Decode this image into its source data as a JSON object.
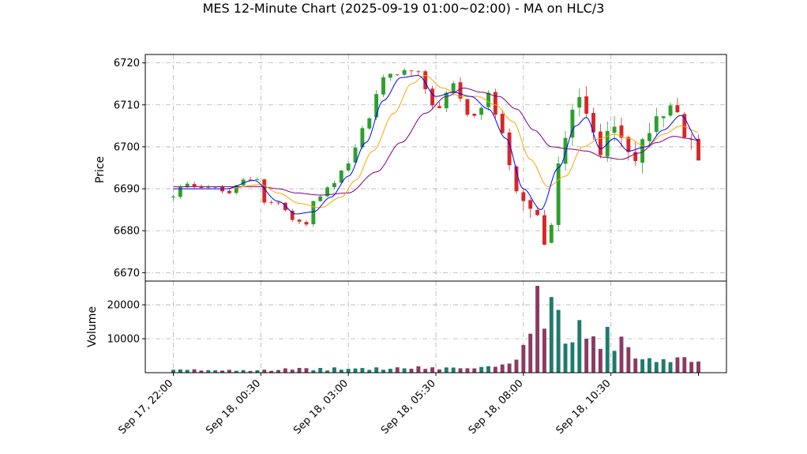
{
  "chart_data": {
    "type": "candlestick",
    "title": "MES 12-Minute Chart (2025-09-19 01:00~02:00) - MA on HLC/3",
    "price_panel": {
      "ylabel": "Price",
      "ylim": [
        6668,
        6722
      ],
      "yticks": [
        6670,
        6680,
        6690,
        6700,
        6710,
        6720
      ],
      "grid": true
    },
    "volume_panel": {
      "ylabel": "Volume",
      "ylim": [
        0,
        27000
      ],
      "yticks": [
        10000,
        20000
      ],
      "ytick_labels": [
        "10000",
        "20000"
      ],
      "grid": true
    },
    "x_ticks": [
      "Sep 17, 22:00",
      "Sep 18, 00:30",
      "Sep 18, 03:00",
      "Sep 18, 05:30",
      "Sep 18, 08:00",
      "Sep 18, 10:30"
    ],
    "x_tick_positions_hours": [
      0,
      2.5,
      5,
      7.5,
      10,
      12.5
    ],
    "x_range_hours": [
      -0.8,
      15.8
    ],
    "data_end_hours": 15.0,
    "colors": {
      "up": "#2ca02c",
      "down": "#d62728",
      "ma_fast": "#0000ff",
      "ma_mid": "#ffa500",
      "ma_slow": "#800080",
      "vol_up": "#1f7a6e",
      "vol_down": "#8b3a62",
      "grid": "#b0b0b0"
    },
    "price_anchors_hours_close": [
      [
        0,
        6688
      ],
      [
        0.3,
        6691
      ],
      [
        1.0,
        6690.5
      ],
      [
        1.6,
        6689
      ],
      [
        2.0,
        6692
      ],
      [
        2.4,
        6692.5
      ],
      [
        2.5,
        6687
      ],
      [
        3.0,
        6686.5
      ],
      [
        3.5,
        6682
      ],
      [
        3.8,
        6681.5
      ],
      [
        4.0,
        6687
      ],
      [
        4.5,
        6691
      ],
      [
        5.0,
        6696
      ],
      [
        5.5,
        6706
      ],
      [
        6.0,
        6716
      ],
      [
        6.5,
        6718
      ],
      [
        7.0,
        6717
      ],
      [
        7.5,
        6709
      ],
      [
        8.0,
        6715
      ],
      [
        8.5,
        6706
      ],
      [
        9.0,
        6712
      ],
      [
        9.4,
        6704
      ],
      [
        9.8,
        6688
      ],
      [
        10.0,
        6686
      ],
      [
        10.3,
        6684
      ],
      [
        10.7,
        6676
      ],
      [
        11.0,
        6695
      ],
      [
        11.5,
        6712
      ],
      [
        11.7,
        6715
      ],
      [
        11.9,
        6703
      ],
      [
        12.2,
        6698
      ],
      [
        12.5,
        6708
      ],
      [
        12.9,
        6699
      ],
      [
        13.2,
        6696
      ],
      [
        13.5,
        6703
      ],
      [
        13.9,
        6706
      ],
      [
        14.3,
        6709
      ],
      [
        14.7,
        6702
      ],
      [
        15.0,
        6696
      ]
    ],
    "volume_anchors_hours": [
      [
        0,
        800
      ],
      [
        9.0,
        1500
      ],
      [
        9.8,
        3000
      ],
      [
        10.0,
        7000
      ],
      [
        10.4,
        12000
      ],
      [
        10.6,
        16000
      ],
      [
        10.9,
        14000
      ],
      [
        11.3,
        10000
      ],
      [
        12.0,
        11000
      ],
      [
        12.5,
        6000
      ],
      [
        13.0,
        9000
      ],
      [
        13.5,
        4000
      ],
      [
        14.0,
        4500
      ],
      [
        14.5,
        6000
      ],
      [
        15.0,
        5000
      ]
    ],
    "volume_peaks_hours": [
      [
        10.5,
        25600
      ],
      [
        10.8,
        22300
      ],
      [
        11.6,
        15500
      ],
      [
        12.4,
        13500
      ],
      [
        10.95,
        18500
      ]
    ],
    "ma_fast_anchors": [
      [
        0,
        6690
      ],
      [
        1.5,
        6690
      ],
      [
        2.3,
        6692
      ],
      [
        3.0,
        6687
      ],
      [
        3.5,
        6684
      ],
      [
        4.0,
        6684.5
      ],
      [
        4.5,
        6688
      ],
      [
        5.0,
        6693
      ],
      [
        5.5,
        6701
      ],
      [
        6.0,
        6711
      ],
      [
        6.5,
        6716.5
      ],
      [
        7.0,
        6717
      ],
      [
        7.5,
        6712
      ],
      [
        8.0,
        6713
      ],
      [
        8.5,
        6712
      ],
      [
        9.0,
        6709
      ],
      [
        9.5,
        6702
      ],
      [
        10.0,
        6690
      ],
      [
        10.5,
        6685
      ],
      [
        11.0,
        6695
      ],
      [
        11.5,
        6705
      ],
      [
        11.8,
        6707
      ],
      [
        12.2,
        6699.5
      ],
      [
        12.6,
        6702
      ],
      [
        13.0,
        6699
      ],
      [
        13.5,
        6700
      ],
      [
        14.0,
        6704
      ],
      [
        14.5,
        6707.5
      ],
      [
        15.0,
        6701.5
      ]
    ],
    "ma_mid_anchors": [
      [
        0,
        6690
      ],
      [
        1.5,
        6690
      ],
      [
        2.5,
        6691
      ],
      [
        3.0,
        6689
      ],
      [
        3.6,
        6686.5
      ],
      [
        4.2,
        6685.5
      ],
      [
        4.8,
        6688
      ],
      [
        5.2,
        6692
      ],
      [
        5.7,
        6699
      ],
      [
        6.3,
        6708
      ],
      [
        6.8,
        6715
      ],
      [
        7.2,
        6717
      ],
      [
        7.7,
        6714
      ],
      [
        8.2,
        6712
      ],
      [
        8.7,
        6712
      ],
      [
        9.2,
        6710
      ],
      [
        9.7,
        6706
      ],
      [
        10.2,
        6697
      ],
      [
        10.7,
        6690.5
      ],
      [
        11.2,
        6693
      ],
      [
        11.7,
        6700
      ],
      [
        12.2,
        6702
      ],
      [
        12.6,
        6703
      ],
      [
        13.0,
        6702
      ],
      [
        13.5,
        6700
      ],
      [
        14.0,
        6703
      ],
      [
        14.5,
        6705
      ],
      [
        15.0,
        6703.5
      ]
    ],
    "ma_slow_anchors": [
      [
        0,
        6690.5
      ],
      [
        1.5,
        6690.5
      ],
      [
        2.5,
        6690.5
      ],
      [
        3.0,
        6690
      ],
      [
        3.5,
        6689
      ],
      [
        4.2,
        6688.5
      ],
      [
        5.0,
        6689
      ],
      [
        5.8,
        6694
      ],
      [
        6.5,
        6701
      ],
      [
        7.2,
        6708
      ],
      [
        7.8,
        6712
      ],
      [
        8.3,
        6714
      ],
      [
        8.8,
        6713
      ],
      [
        9.3,
        6712
      ],
      [
        9.8,
        6709
      ],
      [
        10.3,
        6704
      ],
      [
        10.8,
        6700
      ],
      [
        11.3,
        6699.5
      ],
      [
        11.8,
        6699
      ],
      [
        12.3,
        6697.5
      ],
      [
        12.8,
        6697
      ],
      [
        13.3,
        6698.5
      ],
      [
        13.8,
        6701
      ],
      [
        14.3,
        6702.5
      ],
      [
        14.7,
        6702
      ],
      [
        15.0,
        6701.5
      ]
    ]
  }
}
